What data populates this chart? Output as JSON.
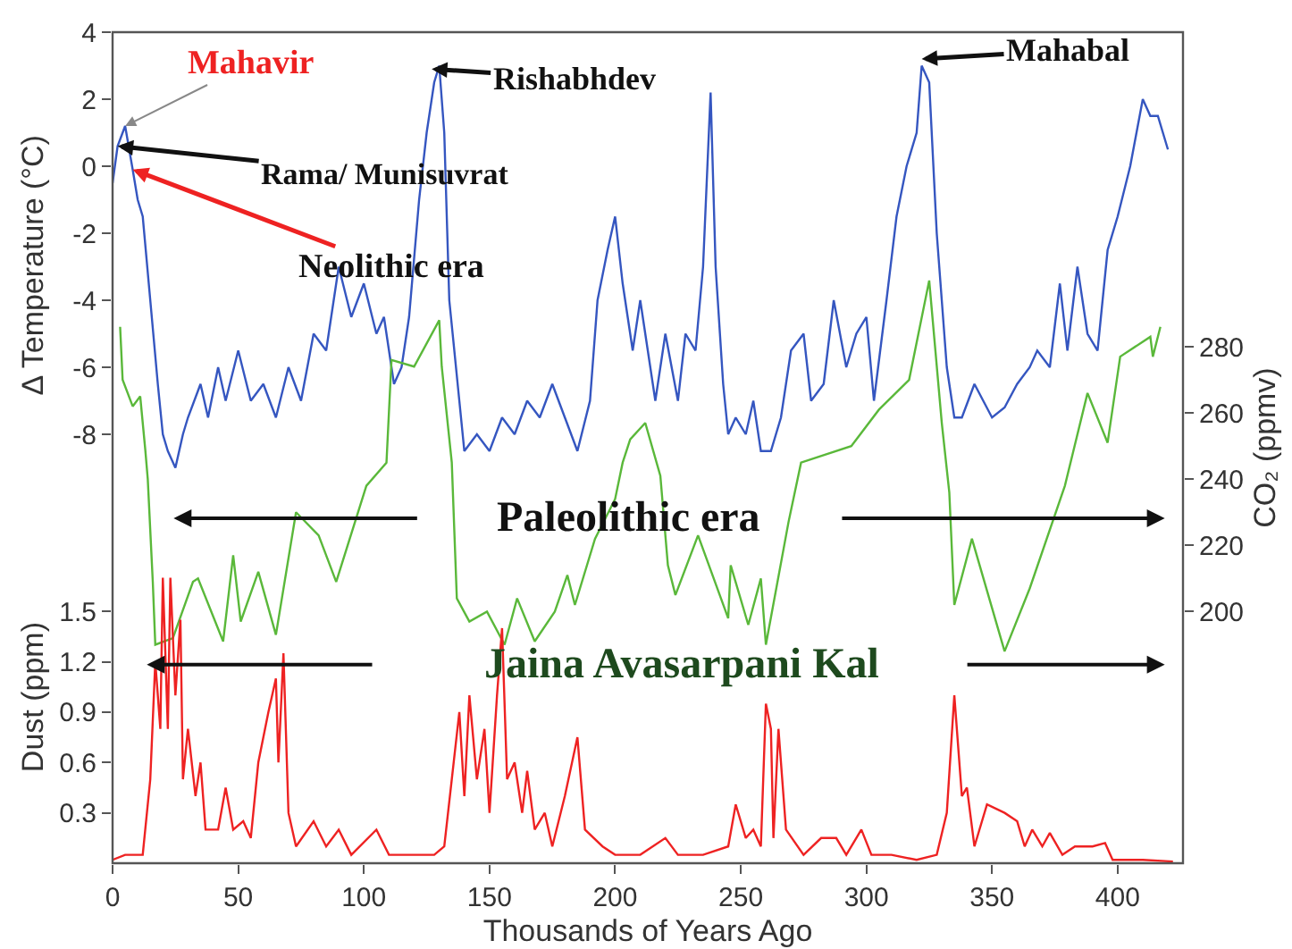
{
  "chart_data": {
    "type": "line",
    "xlabel": "Thousands of Years Ago",
    "ylabel": "Δ Temperature (°C)",
    "y2label": "CO₂ (ppmv)",
    "y3label": "Dust (ppm)",
    "xlim": [
      0,
      426
    ],
    "xticks": [
      0,
      50,
      100,
      150,
      200,
      250,
      300,
      350,
      400
    ],
    "ylim": [
      -20.8,
      4
    ],
    "yticks": [
      -8,
      -6,
      -4,
      -2,
      0,
      2,
      4
    ],
    "y2lim": [
      124,
      375
    ],
    "y2ticks": [
      200,
      220,
      240,
      260,
      280
    ],
    "y3lim": [
      0,
      4.95
    ],
    "y3ticks": [
      0.3,
      0.6,
      0.9,
      1.2,
      1.5
    ],
    "series": [
      {
        "color": "#3556c0",
        "x": [
          0,
          2,
          5,
          8,
          10,
          12,
          15,
          18,
          20,
          22,
          25,
          28,
          30,
          35,
          38,
          42,
          45,
          50,
          55,
          60,
          65,
          70,
          75,
          80,
          85,
          90,
          95,
          100,
          105,
          108,
          112,
          115,
          118,
          122,
          125,
          128,
          130,
          132,
          134,
          138,
          140,
          145,
          150,
          155,
          160,
          165,
          170,
          175,
          180,
          185,
          190,
          193,
          197,
          200,
          203,
          207,
          210,
          213,
          216,
          220,
          225,
          228,
          232,
          235,
          238,
          240,
          243,
          245,
          248,
          252,
          255,
          258,
          262,
          266,
          270,
          275,
          278,
          283,
          287,
          292,
          296,
          300,
          303,
          308,
          312,
          316,
          320,
          322,
          325,
          328,
          332,
          335,
          338,
          343,
          350,
          355,
          360,
          365,
          368,
          373,
          377,
          380,
          384,
          388,
          392,
          396,
          400,
          405,
          410,
          413,
          416,
          420
        ],
        "values": [
          -0.5,
          0.6,
          1.2,
          -0.1,
          -1,
          -1.5,
          -4,
          -6.5,
          -8,
          -8.5,
          -9,
          -8,
          -7.5,
          -6.5,
          -7.5,
          -6,
          -7,
          -5.5,
          -7,
          -6.5,
          -7.5,
          -6,
          -7,
          -5,
          -5.5,
          -3,
          -4.5,
          -3.5,
          -5,
          -4.5,
          -6.5,
          -6,
          -4.5,
          -1,
          1,
          2.5,
          3,
          1,
          -4,
          -7,
          -8.5,
          -8,
          -8.5,
          -7.5,
          -8,
          -7,
          -7.5,
          -6.5,
          -7.5,
          -8.5,
          -7,
          -4,
          -2.5,
          -1.5,
          -3.5,
          -5.5,
          -4,
          -5.5,
          -7,
          -5,
          -7,
          -5,
          -5.5,
          -3,
          2.2,
          -3,
          -6.5,
          -8,
          -7.5,
          -8,
          -7,
          -8.5,
          -8.5,
          -7.5,
          -5.5,
          -5,
          -7,
          -6.5,
          -4,
          -6,
          -5,
          -4.5,
          -7,
          -4,
          -1.5,
          0,
          1,
          3,
          2.5,
          -2,
          -6,
          -7.5,
          -7.5,
          -6.5,
          -7.5,
          -7.2,
          -6.5,
          -6,
          -5.5,
          -6,
          -3.5,
          -5.5,
          -3,
          -5,
          -5.5,
          -2.5,
          -1.5,
          0,
          2,
          1.5,
          1.5,
          0.5
        ]
      },
      {
        "color": "#5ab83a",
        "axis": "y2",
        "x": [
          3,
          4,
          8,
          11,
          13,
          14,
          16,
          17,
          24,
          32,
          34,
          44,
          48,
          51,
          58,
          65,
          73,
          82,
          89,
          101,
          109,
          111,
          120,
          130,
          131,
          135,
          137,
          142,
          149,
          156,
          161,
          168,
          176,
          181,
          184,
          192,
          200,
          203,
          206,
          212,
          218,
          221,
          224,
          233,
          245,
          246,
          253,
          258,
          260,
          269,
          274,
          294,
          305,
          317,
          325,
          330,
          333,
          335,
          342,
          355,
          365,
          379,
          388,
          396,
          401,
          413,
          414,
          417
        ],
        "values": [
          286,
          270,
          262,
          265,
          249,
          240,
          209,
          190,
          192,
          209,
          210,
          191,
          217,
          197,
          212,
          193,
          230,
          223,
          209,
          238,
          245,
          276,
          274,
          288,
          274,
          245,
          204,
          197,
          200,
          190,
          204,
          191,
          200,
          211,
          202,
          222,
          234,
          245,
          252,
          257,
          241,
          214,
          205,
          223,
          198,
          214,
          196,
          210,
          190,
          227,
          245,
          250,
          261,
          270,
          300,
          257,
          236,
          202,
          222,
          188,
          207,
          238,
          266,
          251,
          277,
          283,
          277,
          286
        ]
      },
      {
        "color": "#ee2222",
        "axis": "y3",
        "x": [
          0,
          5,
          12,
          15,
          17,
          19,
          20,
          22,
          23,
          25,
          27,
          28,
          30,
          33,
          35,
          37,
          42,
          45,
          48,
          52,
          55,
          58,
          62,
          65,
          66,
          68,
          70,
          73,
          80,
          85,
          90,
          95,
          105,
          110,
          120,
          128,
          132,
          135,
          138,
          140,
          142,
          145,
          148,
          150,
          153,
          155,
          157,
          160,
          163,
          165,
          168,
          172,
          175,
          180,
          185,
          188,
          195,
          200,
          210,
          220,
          225,
          235,
          245,
          248,
          252,
          255,
          258,
          260,
          262,
          263,
          265,
          268,
          275,
          282,
          288,
          292,
          298,
          302,
          310,
          320,
          328,
          332,
          335,
          338,
          340,
          343,
          348,
          355,
          360,
          363,
          366,
          370,
          373,
          378,
          383,
          390,
          395,
          398,
          410,
          422
        ],
        "values": [
          0.02,
          0.05,
          0.05,
          0.5,
          1.2,
          0.8,
          1.7,
          0.8,
          1.7,
          1,
          1.45,
          0.5,
          0.8,
          0.4,
          0.6,
          0.2,
          0.2,
          0.45,
          0.2,
          0.25,
          0.15,
          0.6,
          0.9,
          1.1,
          0.6,
          1.25,
          0.3,
          0.1,
          0.25,
          0.1,
          0.2,
          0.05,
          0.2,
          0.05,
          0.05,
          0.05,
          0.1,
          0.5,
          0.9,
          0.4,
          1,
          0.5,
          0.8,
          0.3,
          1,
          1.4,
          0.5,
          0.6,
          0.3,
          0.55,
          0.2,
          0.3,
          0.1,
          0.4,
          0.75,
          0.2,
          0.1,
          0.05,
          0.05,
          0.15,
          0.05,
          0.05,
          0.1,
          0.35,
          0.15,
          0.2,
          0.1,
          0.95,
          0.8,
          0.15,
          0.8,
          0.2,
          0.05,
          0.15,
          0.15,
          0.05,
          0.2,
          0.05,
          0.05,
          0.02,
          0.05,
          0.3,
          1,
          0.4,
          0.45,
          0.1,
          0.35,
          0.3,
          0.25,
          0.1,
          0.2,
          0.1,
          0.18,
          0.05,
          0.1,
          0.1,
          0.12,
          0.02,
          0.02,
          0.01
        ]
      }
    ],
    "annotations": [
      {
        "text": "Mahavir",
        "x": 5,
        "y": 1.2
      },
      {
        "text": "Rama/ Munisuvrat",
        "x": 2,
        "y": 0.6
      },
      {
        "text": "Neolithic era",
        "x": 8,
        "y": -0.1
      },
      {
        "text": "Rishabhdev",
        "x": 127,
        "y": 2.9
      },
      {
        "text": "Mahabal",
        "x": 322,
        "y": 3.2
      },
      "Paleolithic era",
      "Jaina Avasarpani Kal"
    ]
  }
}
